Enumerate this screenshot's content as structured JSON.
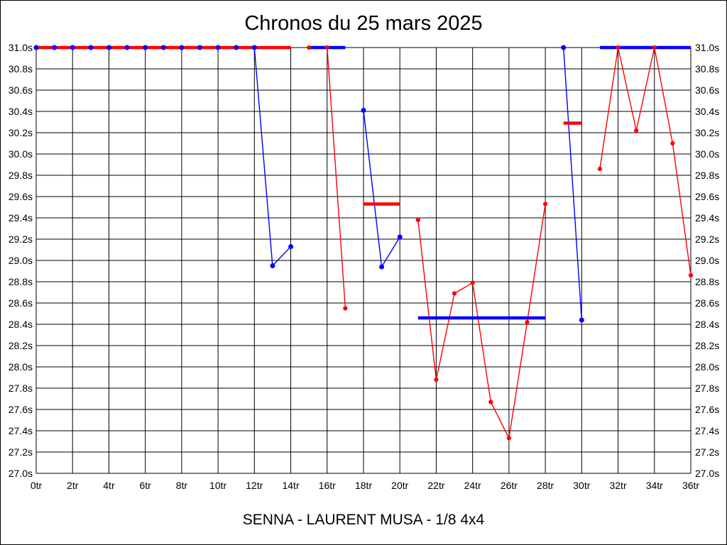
{
  "chart_data": {
    "type": "line",
    "title": "Chronos du 25 mars 2025",
    "footer": "SENNA - LAURENT MUSA - 1/8 4x4",
    "x_axis": {
      "unit": "tr",
      "min": 0,
      "max": 36,
      "grid_step": 2,
      "tick_labels": [
        "0tr",
        "2tr",
        "4tr",
        "6tr",
        "8tr",
        "10tr",
        "12tr",
        "14tr",
        "16tr",
        "18tr",
        "20tr",
        "22tr",
        "24tr",
        "26tr",
        "28tr",
        "30tr",
        "32tr",
        "34tr",
        "36tr"
      ]
    },
    "y_axis": {
      "unit": "s",
      "min": 27.0,
      "max": 31.0,
      "grid_step": 0.2,
      "tick_labels": [
        "31.0s",
        "30.8s",
        "30.6s",
        "30.4s",
        "30.2s",
        "30.0s",
        "29.8s",
        "29.6s",
        "29.4s",
        "29.2s",
        "29.0s",
        "28.8s",
        "28.6s",
        "28.4s",
        "28.2s",
        "28.0s",
        "27.8s",
        "27.6s",
        "27.4s",
        "27.2s",
        "27.0s"
      ]
    },
    "grid": true,
    "legend": "none",
    "series": [
      {
        "name": "blue-driver",
        "color": "#0000ff",
        "segments": [
          [
            [
              0,
              31.0
            ],
            [
              1,
              31.0
            ],
            [
              2,
              31.0
            ],
            [
              3,
              31.0
            ],
            [
              4,
              31.0
            ],
            [
              5,
              31.0
            ],
            [
              6,
              31.0
            ],
            [
              7,
              31.0
            ],
            [
              8,
              31.0
            ],
            [
              9,
              31.0
            ],
            [
              10,
              31.0
            ],
            [
              11,
              31.0
            ],
            [
              12,
              31.0
            ],
            [
              13,
              28.95
            ],
            [
              14,
              29.13
            ]
          ],
          [
            [
              18,
              30.41
            ],
            [
              19,
              28.94
            ],
            [
              20,
              29.22
            ]
          ],
          [
            [
              29,
              31.0
            ],
            [
              30,
              28.44
            ]
          ]
        ],
        "stint_bars": [
          [
            15,
            17,
            31.0
          ],
          [
            21,
            28,
            28.46
          ],
          [
            31,
            36,
            31.0
          ]
        ]
      },
      {
        "name": "red-driver",
        "color": "#ff0000",
        "segments": [
          [
            [
              15,
              31.0
            ],
            [
              16,
              31.0
            ],
            [
              17,
              28.55
            ]
          ],
          [
            [
              21,
              29.38
            ],
            [
              22,
              27.88
            ],
            [
              23,
              28.69
            ],
            [
              24,
              28.79
            ],
            [
              25,
              27.67
            ],
            [
              26,
              27.33
            ],
            [
              27,
              28.42
            ],
            [
              28,
              29.53
            ]
          ],
          [
            [
              31,
              29.86
            ],
            [
              32,
              31.0
            ],
            [
              33,
              30.22
            ],
            [
              34,
              31.0
            ],
            [
              35,
              30.1
            ],
            [
              36,
              28.86
            ]
          ]
        ],
        "stint_bars": [
          [
            0,
            14,
            31.0
          ],
          [
            18,
            20,
            29.53
          ],
          [
            29,
            30,
            30.29
          ]
        ]
      }
    ]
  }
}
